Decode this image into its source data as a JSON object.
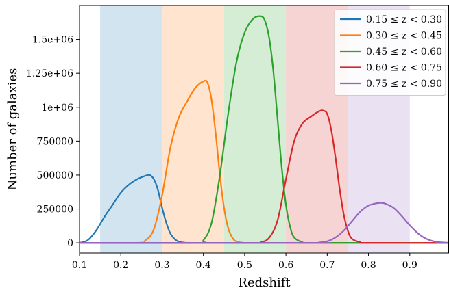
{
  "chart_data": {
    "type": "line",
    "xlabel": "Redshift",
    "ylabel": "Number of galaxies",
    "xlim": [
      0.1,
      0.995
    ],
    "ylim": [
      -75000,
      1750000
    ],
    "x_ticks": [
      0.1,
      0.2,
      0.3,
      0.4,
      0.5,
      0.6,
      0.7,
      0.8,
      0.9
    ],
    "x_tick_labels": [
      "0.1",
      "0.2",
      "0.3",
      "0.4",
      "0.5",
      "0.6",
      "0.7",
      "0.8",
      "0.9"
    ],
    "y_ticks": [
      0,
      250000,
      500000,
      750000,
      1000000,
      1250000,
      1500000
    ],
    "y_tick_labels": [
      "0",
      "250000",
      "500000",
      "750000",
      "1e+06",
      "1.25e+06",
      "1.5e+06"
    ],
    "legend_position": "top-right",
    "bands": [
      {
        "x0": 0.15,
        "x1": 0.3,
        "color": "#1f77b4"
      },
      {
        "x0": 0.3,
        "x1": 0.45,
        "color": "#ff7f0e"
      },
      {
        "x0": 0.45,
        "x1": 0.6,
        "color": "#2ca02c"
      },
      {
        "x0": 0.6,
        "x1": 0.75,
        "color": "#d62728"
      },
      {
        "x0": 0.75,
        "x1": 0.9,
        "color": "#9467bd"
      }
    ],
    "series": [
      {
        "name": "0.15 ≤ z < 0.30",
        "color": "#1f77b4",
        "x": [
          0.1,
          0.12,
          0.14,
          0.16,
          0.18,
          0.2,
          0.22,
          0.24,
          0.26,
          0.27,
          0.28,
          0.29,
          0.3,
          0.31,
          0.32,
          0.33,
          0.34,
          0.36,
          0.38,
          0.4,
          0.995
        ],
        "y": [
          0,
          20000,
          90000,
          190000,
          280000,
          370000,
          430000,
          470000,
          495000,
          500000,
          470000,
          390000,
          260000,
          150000,
          70000,
          30000,
          10000,
          0,
          0,
          0,
          0
        ]
      },
      {
        "name": "0.30 ≤ z < 0.45",
        "color": "#ff7f0e",
        "x": [
          0.1,
          0.24,
          0.26,
          0.28,
          0.3,
          0.32,
          0.34,
          0.36,
          0.38,
          0.4,
          0.41,
          0.42,
          0.43,
          0.44,
          0.45,
          0.46,
          0.47,
          0.48,
          0.5,
          0.52,
          0.995
        ],
        "y": [
          0,
          0,
          20000,
          100000,
          350000,
          700000,
          920000,
          1040000,
          1140000,
          1190000,
          1180000,
          1050000,
          800000,
          500000,
          260000,
          110000,
          40000,
          10000,
          0,
          0,
          0
        ]
      },
      {
        "name": "0.45 ≤ z < 0.60",
        "color": "#2ca02c",
        "x": [
          0.1,
          0.38,
          0.4,
          0.42,
          0.44,
          0.46,
          0.48,
          0.5,
          0.52,
          0.54,
          0.55,
          0.56,
          0.57,
          0.58,
          0.59,
          0.6,
          0.61,
          0.62,
          0.64,
          0.66,
          0.995
        ],
        "y": [
          0,
          0,
          20000,
          150000,
          500000,
          950000,
          1330000,
          1550000,
          1650000,
          1670000,
          1630000,
          1500000,
          1250000,
          900000,
          550000,
          280000,
          120000,
          40000,
          5000,
          0,
          0
        ]
      },
      {
        "name": "0.60 ≤ z < 0.75",
        "color": "#d62728",
        "x": [
          0.1,
          0.52,
          0.54,
          0.56,
          0.58,
          0.6,
          0.62,
          0.64,
          0.66,
          0.68,
          0.69,
          0.7,
          0.71,
          0.72,
          0.73,
          0.74,
          0.75,
          0.76,
          0.78,
          0.8,
          0.995
        ],
        "y": [
          0,
          0,
          5000,
          40000,
          170000,
          470000,
          750000,
          880000,
          930000,
          970000,
          975000,
          950000,
          830000,
          630000,
          400000,
          210000,
          90000,
          30000,
          5000,
          0,
          0
        ]
      },
      {
        "name": "0.75 ≤ z < 0.90",
        "color": "#9467bd",
        "x": [
          0.1,
          0.66,
          0.68,
          0.7,
          0.72,
          0.74,
          0.76,
          0.78,
          0.8,
          0.82,
          0.83,
          0.84,
          0.86,
          0.88,
          0.9,
          0.92,
          0.94,
          0.96,
          0.98,
          0.995
        ],
        "y": [
          0,
          0,
          3000,
          12000,
          40000,
          90000,
          160000,
          230000,
          275000,
          292000,
          295000,
          290000,
          260000,
          200000,
          130000,
          70000,
          30000,
          10000,
          3000,
          1000
        ]
      }
    ]
  }
}
